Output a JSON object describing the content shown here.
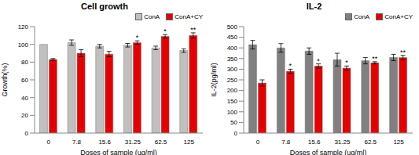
{
  "chart_data": [
    {
      "type": "bar",
      "title": "Cell growth",
      "x_label": "Doses of sample (ug/ml)",
      "y_label": "Growth(%)",
      "categories": [
        "0",
        "7.8",
        "15.6",
        "31.25",
        "62.5",
        "125"
      ],
      "series": [
        {
          "name": "ConA",
          "color": "#c0c0c0",
          "values": [
            100,
            102,
            98,
            99,
            96,
            93
          ],
          "errors": [
            0,
            3,
            2,
            2,
            2,
            2
          ]
        },
        {
          "name": "ConA+CY",
          "color": "#e60000",
          "values": [
            83,
            90,
            89,
            102,
            109,
            110
          ],
          "errors": [
            1,
            4,
            3,
            2,
            2,
            3
          ]
        }
      ],
      "annotations": [
        null,
        null,
        null,
        "*",
        "*",
        "**"
      ],
      "ylim": [
        0,
        120
      ],
      "yticks": [
        0,
        20,
        40,
        60,
        80,
        100,
        120
      ],
      "grid": false,
      "legend": "upper right"
    },
    {
      "type": "bar",
      "title": "IL-2",
      "x_label": "Doses of sample (ug/ml)",
      "y_label": "IL-2(pg/ml)",
      "categories": [
        "0",
        "7.8",
        "15.6",
        "31.25",
        "62.5",
        "125"
      ],
      "series": [
        {
          "name": "ConA",
          "color": "#808080",
          "values": [
            415,
            400,
            385,
            345,
            340,
            355
          ],
          "errors": [
            20,
            20,
            15,
            30,
            15,
            15
          ]
        },
        {
          "name": "ConA+CY",
          "color": "#e60000",
          "values": [
            235,
            290,
            315,
            305,
            330,
            355
          ],
          "errors": [
            15,
            10,
            10,
            10,
            5,
            10
          ]
        }
      ],
      "annotations": [
        null,
        "*",
        "*",
        "*",
        "**",
        "**"
      ],
      "ylim": [
        0,
        500
      ],
      "yticks": [
        0,
        50,
        100,
        150,
        200,
        250,
        300,
        350,
        400,
        450,
        500
      ],
      "grid": false,
      "legend": "upper right"
    }
  ]
}
